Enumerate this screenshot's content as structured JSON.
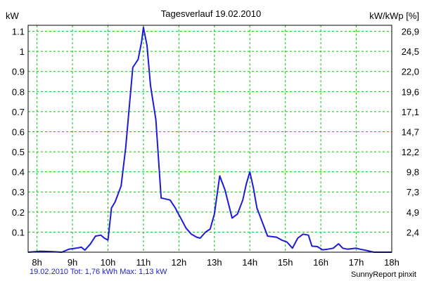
{
  "chart_data": {
    "type": "line",
    "title": "Tagesverlauf 19.02.2010",
    "ylabel_left": "kW",
    "ylabel_right": "kW/kWp [%]",
    "x_ticks": [
      "8h",
      "9h",
      "10h",
      "11h",
      "12h",
      "13h",
      "14h",
      "15h",
      "16h",
      "17h",
      "18h"
    ],
    "xlim": [
      7.75,
      18.0
    ],
    "y_ticks_left": [
      "0.1",
      "0.2",
      "0.3",
      "0.4",
      "0.5",
      "0.6",
      "0.7",
      "0.8",
      "0.9",
      "1",
      "1.1"
    ],
    "y_ticks_right": [
      "2,4",
      "4,9",
      "7,3",
      "9,8",
      "12,2",
      "14,7",
      "17,1",
      "19,6",
      "22,0",
      "24,5",
      "26,9"
    ],
    "ylim": [
      0,
      1.13
    ],
    "grid": true,
    "colors": {
      "line": "#1c1cd6",
      "grid": "#00c800",
      "footer": "#1f1fc8"
    },
    "series": [
      {
        "x": [
          7.75,
          8.1,
          8.4,
          8.7,
          8.9,
          9.1,
          9.25,
          9.35,
          9.5,
          9.65,
          9.8,
          9.9,
          10.0,
          10.1,
          10.2,
          10.37,
          10.5,
          10.7,
          10.85,
          10.95,
          11.0,
          11.1,
          11.2,
          11.35,
          11.5,
          11.75,
          11.9,
          12.05,
          12.2,
          12.35,
          12.5,
          12.6,
          12.75,
          12.88,
          13.0,
          13.15,
          13.3,
          13.5,
          13.65,
          13.8,
          13.9,
          14.0,
          14.1,
          14.2,
          14.35,
          14.5,
          14.75,
          14.9,
          15.05,
          15.2,
          15.35,
          15.5,
          15.65,
          15.75,
          15.9,
          16.05,
          16.2,
          16.35,
          16.5,
          16.62,
          16.75,
          17.0,
          17.1,
          17.25,
          17.5,
          17.75,
          18.0
        ],
        "y": [
          0.0,
          0.005,
          0.003,
          0.0,
          0.015,
          0.02,
          0.025,
          0.01,
          0.04,
          0.08,
          0.085,
          0.07,
          0.06,
          0.22,
          0.25,
          0.33,
          0.52,
          0.92,
          0.96,
          1.05,
          1.12,
          1.03,
          0.83,
          0.66,
          0.27,
          0.26,
          0.22,
          0.17,
          0.12,
          0.09,
          0.075,
          0.07,
          0.1,
          0.115,
          0.19,
          0.38,
          0.31,
          0.17,
          0.19,
          0.26,
          0.34,
          0.4,
          0.32,
          0.22,
          0.15,
          0.08,
          0.075,
          0.06,
          0.05,
          0.02,
          0.07,
          0.09,
          0.085,
          0.03,
          0.028,
          0.012,
          0.015,
          0.02,
          0.042,
          0.02,
          0.015,
          0.02,
          0.015,
          0.01,
          0.0,
          0.0,
          0.0
        ]
      }
    ]
  },
  "footer": {
    "left": "19.02.2010 Tot: 1,76 kWh Max: 1,13 kW",
    "right": "SunnyReport pinxit"
  }
}
